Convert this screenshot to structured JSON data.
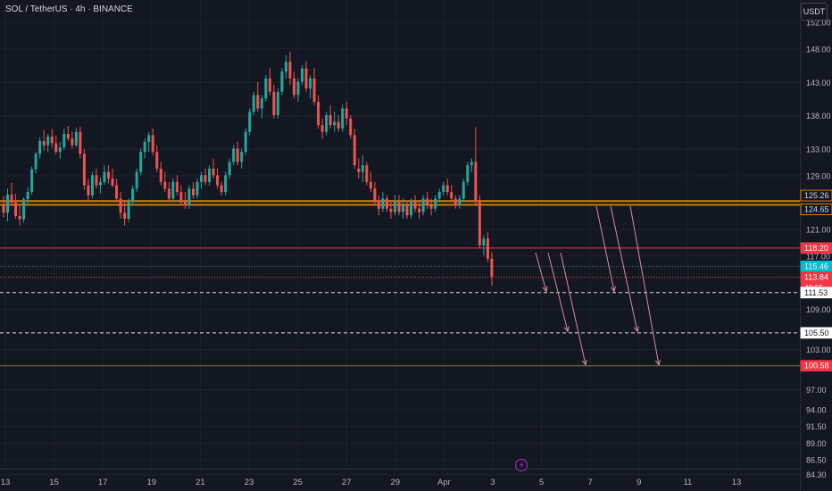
{
  "title": "SOL / TetherUS · 4h · BINANCE",
  "currency_button": "USDT",
  "chart_data": {
    "type": "candlestick",
    "ylim": [
      83.3,
      154.0
    ],
    "y_ticks": [
      152.0,
      148.0,
      143.0,
      138.0,
      133.0,
      129.0,
      121.0,
      117.0,
      109.0,
      103.0,
      97.0,
      94.0,
      91.5,
      89.0,
      86.5,
      84.3
    ],
    "x_ticks": [
      "13",
      "15",
      "17",
      "19",
      "21",
      "23",
      "25",
      "27",
      "29",
      "Apr",
      "3",
      "5",
      "7",
      "9",
      "11",
      "13"
    ],
    "candles_ohlc": [
      [
        124.6,
        126.0,
        122.8,
        123.5
      ],
      [
        123.5,
        127.1,
        122.2,
        126.2
      ],
      [
        126.2,
        128.0,
        124.5,
        125.0
      ],
      [
        125.0,
        126.3,
        122.6,
        123.0
      ],
      [
        123.0,
        124.5,
        121.6,
        122.5
      ],
      [
        122.5,
        125.8,
        122.0,
        125.5
      ],
      [
        125.5,
        127.3,
        124.8,
        126.6
      ],
      [
        126.6,
        130.4,
        126.2,
        130.0
      ],
      [
        130.0,
        132.6,
        129.4,
        132.3
      ],
      [
        132.3,
        134.8,
        131.6,
        134.2
      ],
      [
        134.2,
        135.9,
        132.8,
        133.6
      ],
      [
        133.6,
        135.3,
        132.6,
        134.9
      ],
      [
        134.9,
        136.0,
        133.2,
        133.9
      ],
      [
        133.9,
        135.0,
        132.3,
        132.6
      ],
      [
        132.6,
        134.1,
        131.6,
        133.3
      ],
      [
        133.3,
        136.1,
        132.9,
        135.3
      ],
      [
        135.3,
        136.5,
        134.2,
        134.6
      ],
      [
        134.6,
        135.6,
        133.1,
        133.6
      ],
      [
        133.6,
        136.2,
        133.3,
        135.6
      ],
      [
        135.6,
        136.4,
        131.6,
        132.3
      ],
      [
        132.3,
        133.0,
        126.9,
        127.6
      ],
      [
        127.6,
        128.6,
        125.1,
        126.1
      ],
      [
        126.1,
        129.6,
        125.6,
        129.1
      ],
      [
        129.1,
        130.1,
        127.1,
        127.6
      ],
      [
        127.6,
        128.8,
        126.4,
        128.1
      ],
      [
        128.1,
        130.6,
        127.7,
        129.6
      ],
      [
        129.6,
        130.6,
        127.9,
        128.6
      ],
      [
        128.6,
        130.1,
        127.3,
        127.6
      ],
      [
        127.6,
        128.6,
        125.1,
        125.6
      ],
      [
        125.6,
        126.6,
        122.6,
        123.5
      ],
      [
        123.5,
        125.1,
        121.6,
        122.6
      ],
      [
        122.6,
        125.6,
        122.1,
        125.1
      ],
      [
        125.1,
        127.6,
        124.6,
        127.1
      ],
      [
        127.1,
        130.1,
        126.6,
        129.6
      ],
      [
        129.6,
        133.1,
        129.1,
        132.6
      ],
      [
        132.6,
        134.6,
        131.6,
        134.1
      ],
      [
        134.1,
        135.6,
        132.6,
        135.1
      ],
      [
        135.1,
        136.1,
        132.1,
        132.6
      ],
      [
        132.6,
        133.6,
        129.6,
        130.1
      ],
      [
        130.1,
        131.1,
        127.6,
        128.1
      ],
      [
        128.1,
        129.6,
        126.6,
        127.1
      ],
      [
        127.1,
        128.1,
        125.1,
        125.6
      ],
      [
        125.6,
        128.6,
        125.1,
        128.1
      ],
      [
        128.1,
        129.1,
        126.1,
        126.6
      ],
      [
        126.6,
        127.6,
        124.6,
        125.1
      ],
      [
        125.1,
        126.6,
        124.1,
        124.6
      ],
      [
        124.6,
        127.6,
        124.1,
        127.1
      ],
      [
        127.1,
        128.1,
        125.6,
        126.1
      ],
      [
        126.1,
        128.6,
        125.6,
        128.1
      ],
      [
        128.1,
        129.6,
        127.1,
        129.1
      ],
      [
        129.1,
        130.1,
        127.6,
        128.1
      ],
      [
        128.1,
        130.6,
        127.6,
        130.1
      ],
      [
        130.1,
        131.6,
        128.6,
        129.1
      ],
      [
        129.1,
        130.1,
        127.1,
        127.6
      ],
      [
        127.6,
        128.1,
        126.1,
        126.6
      ],
      [
        126.6,
        129.6,
        126.1,
        129.1
      ],
      [
        129.1,
        131.6,
        128.6,
        131.1
      ],
      [
        131.1,
        133.6,
        130.6,
        133.1
      ],
      [
        133.1,
        134.1,
        130.6,
        131.1
      ],
      [
        131.1,
        133.1,
        130.1,
        132.6
      ],
      [
        132.6,
        136.1,
        132.1,
        135.6
      ],
      [
        135.6,
        139.1,
        135.1,
        138.6
      ],
      [
        138.6,
        141.6,
        138.1,
        141.1
      ],
      [
        141.1,
        143.1,
        138.6,
        139.1
      ],
      [
        139.1,
        141.1,
        137.6,
        140.6
      ],
      [
        140.6,
        144.1,
        140.1,
        143.6
      ],
      [
        143.6,
        145.1,
        141.1,
        141.6
      ],
      [
        141.6,
        142.6,
        137.6,
        138.1
      ],
      [
        138.1,
        142.1,
        137.6,
        141.6
      ],
      [
        141.6,
        145.1,
        141.1,
        144.6
      ],
      [
        144.6,
        147.1,
        143.6,
        146.1
      ],
      [
        146.1,
        147.6,
        142.6,
        143.6
      ],
      [
        143.6,
        144.6,
        140.6,
        141.1
      ],
      [
        141.1,
        143.6,
        140.1,
        143.1
      ],
      [
        143.1,
        145.6,
        142.6,
        145.1
      ],
      [
        145.1,
        146.1,
        141.6,
        142.1
      ],
      [
        142.1,
        144.1,
        140.6,
        143.6
      ],
      [
        143.6,
        145.1,
        139.6,
        140.1
      ],
      [
        140.1,
        141.1,
        136.1,
        136.6
      ],
      [
        136.6,
        137.6,
        134.6,
        135.6
      ],
      [
        135.6,
        138.6,
        135.1,
        138.1
      ],
      [
        138.1,
        139.6,
        136.1,
        136.6
      ],
      [
        136.6,
        138.6,
        135.6,
        137.1
      ],
      [
        137.1,
        138.1,
        135.6,
        136.1
      ],
      [
        136.1,
        139.6,
        135.6,
        139.1
      ],
      [
        139.1,
        140.1,
        136.6,
        137.6
      ],
      [
        137.6,
        138.1,
        134.6,
        135.1
      ],
      [
        135.1,
        136.1,
        130.1,
        130.6
      ],
      [
        130.1,
        131.6,
        128.6,
        129.6
      ],
      [
        129.6,
        132.1,
        128.1,
        130.6
      ],
      [
        130.6,
        131.1,
        127.6,
        128.1
      ],
      [
        128.1,
        129.6,
        126.6,
        127.1
      ],
      [
        127.1,
        128.1,
        124.6,
        125.1
      ],
      [
        125.1,
        126.1,
        123.1,
        124.1
      ],
      [
        124.1,
        126.6,
        123.6,
        125.6
      ],
      [
        125.6,
        126.1,
        123.6,
        124.1
      ],
      [
        124.1,
        125.1,
        122.6,
        123.6
      ],
      [
        123.6,
        126.1,
        123.1,
        125.1
      ],
      [
        125.1,
        126.1,
        123.1,
        123.6
      ],
      [
        123.6,
        125.6,
        122.6,
        124.6
      ],
      [
        124.6,
        125.1,
        122.6,
        123.1
      ],
      [
        123.1,
        125.6,
        122.6,
        125.1
      ],
      [
        125.1,
        126.1,
        123.6,
        124.1
      ],
      [
        124.1,
        125.1,
        122.6,
        123.6
      ],
      [
        123.6,
        126.1,
        123.1,
        125.6
      ],
      [
        125.6,
        126.6,
        124.1,
        124.6
      ],
      [
        124.6,
        125.6,
        123.1,
        124.1
      ],
      [
        124.1,
        126.1,
        123.6,
        125.6
      ],
      [
        125.6,
        127.1,
        125.1,
        126.6
      ],
      [
        126.6,
        128.1,
        126.1,
        127.6
      ],
      [
        127.6,
        128.6,
        126.1,
        126.6
      ],
      [
        126.6,
        127.6,
        125.1,
        125.6
      ],
      [
        125.6,
        126.1,
        124.1,
        124.6
      ],
      [
        124.6,
        126.1,
        124.1,
        125.6
      ],
      [
        125.6,
        128.6,
        125.1,
        128.1
      ],
      [
        128.1,
        131.1,
        127.6,
        130.6
      ],
      [
        130.6,
        131.6,
        129.6,
        131.1
      ],
      [
        131.1,
        136.3,
        124.5,
        125.1
      ],
      [
        125.1,
        126.1,
        118.1,
        118.6
      ],
      [
        118.6,
        120.1,
        117.1,
        119.6
      ],
      [
        119.6,
        120.6,
        116.1,
        116.6
      ],
      [
        116.6,
        117.6,
        112.6,
        113.9
      ]
    ],
    "horizontal_levels": [
      {
        "price": 125.26,
        "label": "125.26",
        "color": "#ff9800"
      },
      {
        "price": 124.65,
        "label": "124.65",
        "color": "#ff9800"
      },
      {
        "price": 118.2,
        "label": "118.20",
        "color": "#f23645"
      },
      {
        "price": 115.46,
        "label": "115.46",
        "color": "#00bcd4"
      },
      {
        "price": 113.84,
        "label": "113.84",
        "color": "#f23645"
      },
      {
        "price": 111.53,
        "label": "111.53",
        "color": "#ffffff"
      },
      {
        "price": 105.5,
        "label": "105.50",
        "color": "#ffffff"
      },
      {
        "price": 100.58,
        "label": "100.58",
        "color": "#f23645"
      }
    ],
    "countdown": "40:55",
    "projection_arrows": [
      {
        "from_price": 117.5,
        "to_price": 111.7
      },
      {
        "from_price": 117.5,
        "to_price": 105.7
      },
      {
        "from_price": 117.5,
        "to_price": 100.7
      },
      {
        "from_price": 124.5,
        "to_price": 111.7
      },
      {
        "from_price": 124.5,
        "to_price": 105.7
      },
      {
        "from_price": 124.5,
        "to_price": 100.7
      }
    ]
  },
  "colors": {
    "background": "#131722",
    "grid": "#1e222d",
    "up": "#26a69a",
    "down": "#ef5350",
    "axis_text": "#b2b5be",
    "arrow": "#d98ba0"
  }
}
